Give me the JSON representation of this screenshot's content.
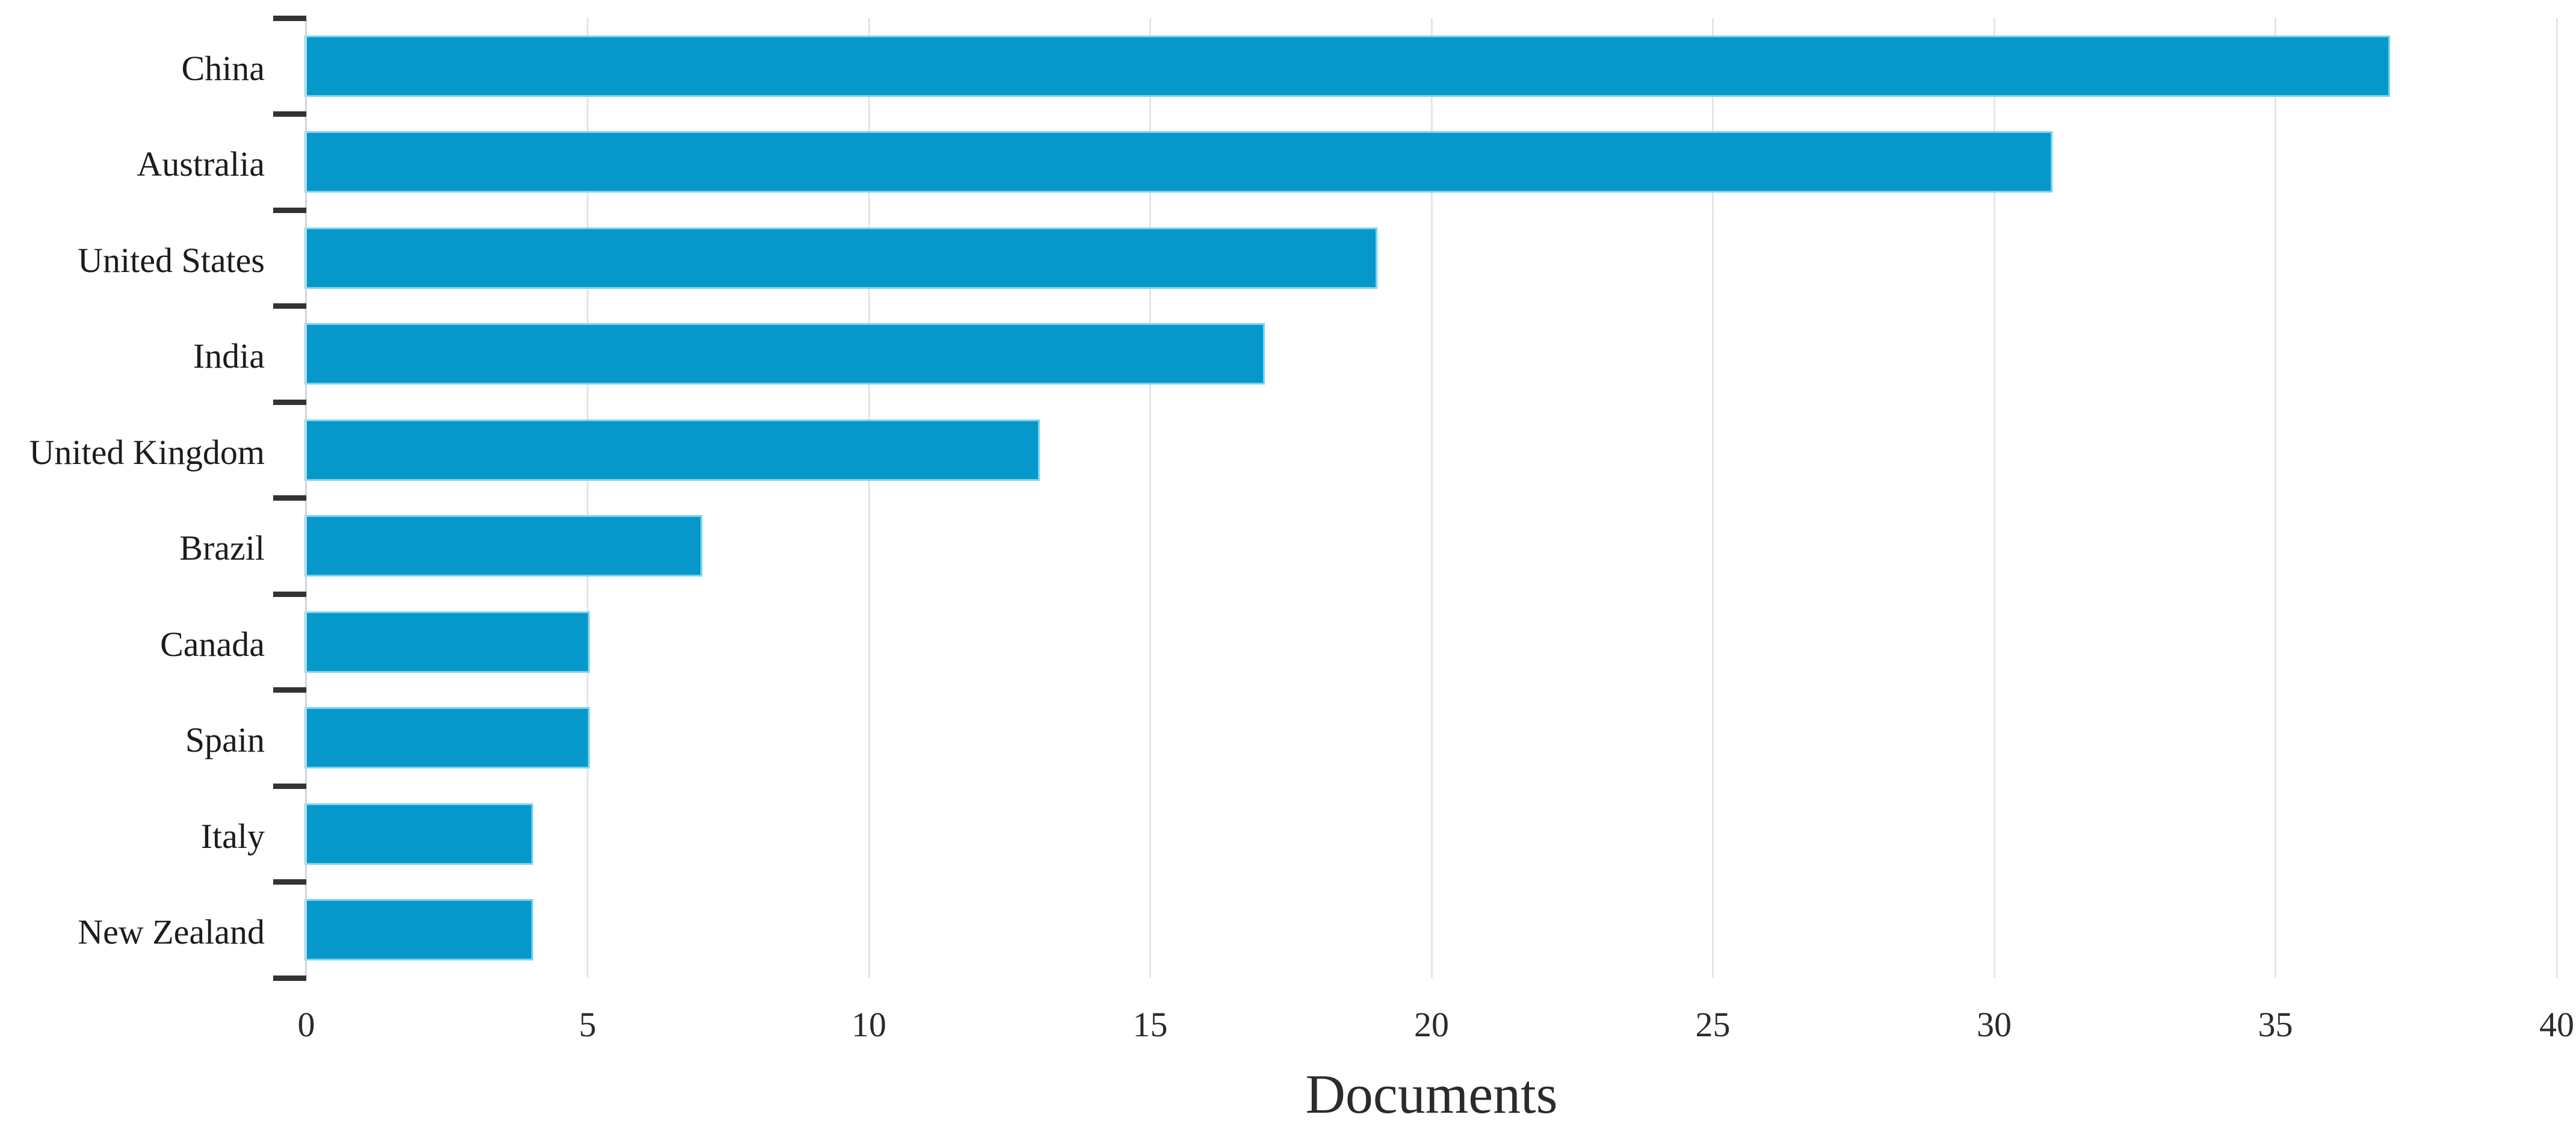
{
  "chart_data": {
    "type": "bar",
    "orientation": "horizontal",
    "title": "",
    "categories": [
      "China",
      "Australia",
      "United States",
      "India",
      "United Kingdom",
      "Brazil",
      "Canada",
      "Spain",
      "Italy",
      "New Zealand"
    ],
    "values": [
      37,
      31,
      19,
      17,
      13,
      7,
      5,
      5,
      4,
      4
    ],
    "xlabel": "Documents",
    "ylabel": "",
    "x_ticks": [
      0,
      5,
      10,
      15,
      20,
      25,
      30,
      35,
      40
    ],
    "xlim": [
      0,
      40
    ],
    "grid": "vertical-only",
    "legend": "none",
    "colors": {
      "bar_fill": "#0798cb",
      "bar_edge": "#7fd2ec",
      "gridline": "#e5e5e5",
      "category_axis_line": "#ccd6eb",
      "tick_mark": "#333333",
      "label_text": "#1c1c1c",
      "tick_label_text": "#2b2b2b",
      "background": "#ffffff"
    }
  }
}
